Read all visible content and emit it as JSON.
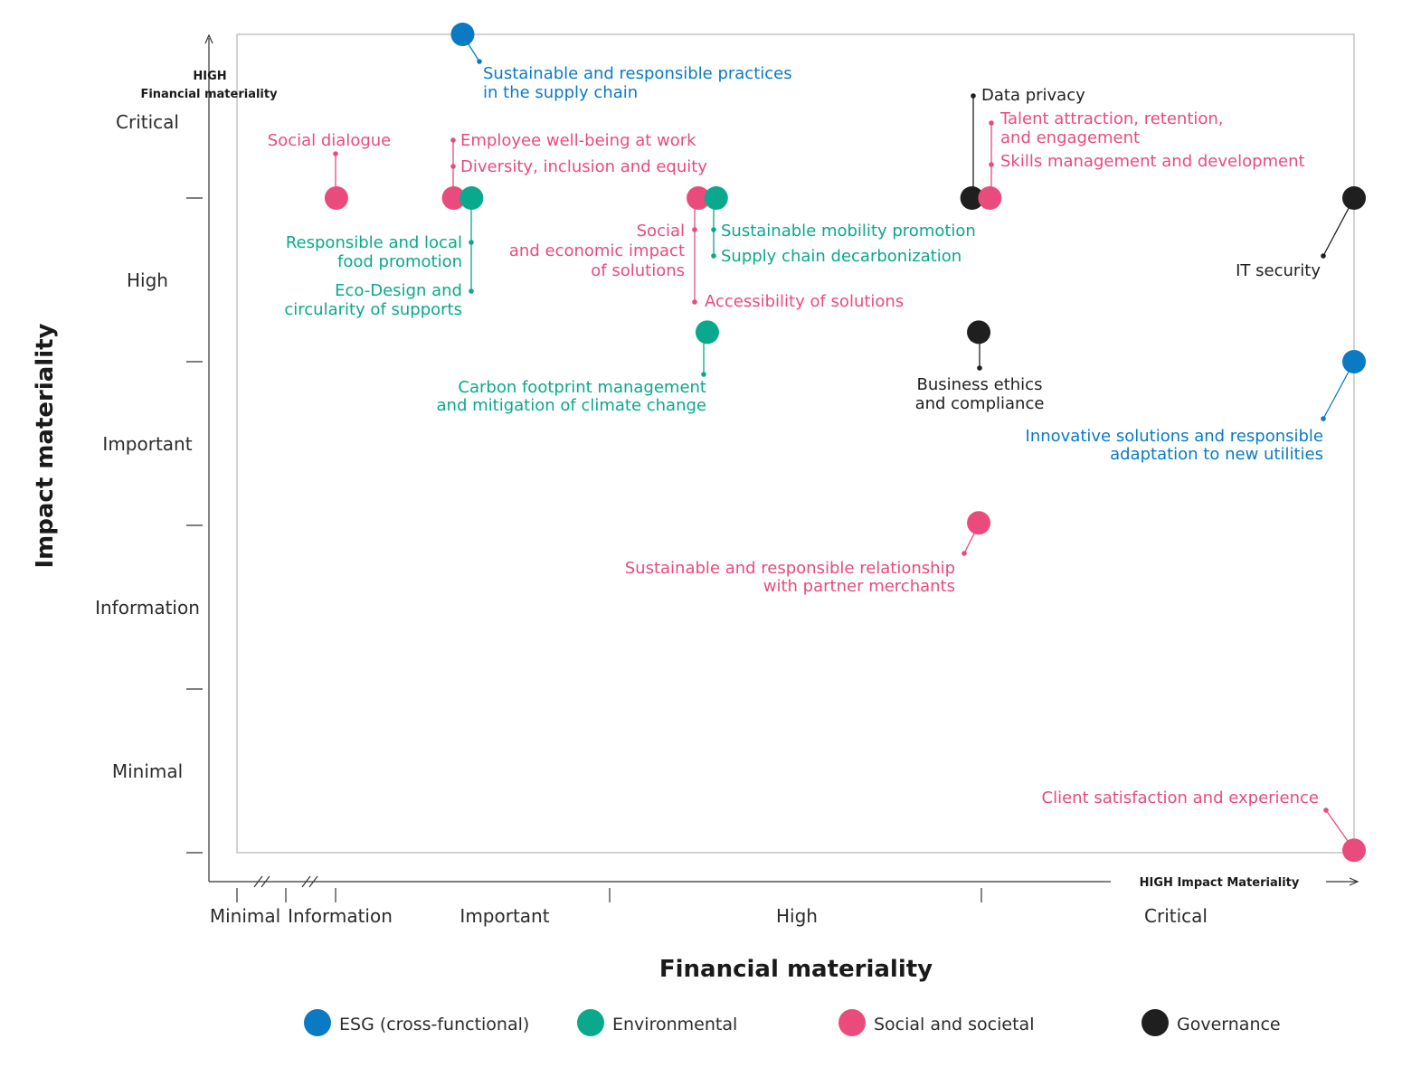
{
  "colors": {
    "esg": "#0a7ac4",
    "environmental": "#0aa88c",
    "social": "#e94b7c",
    "governance": "#1f1f1f"
  },
  "chart_data": {
    "type": "scatter",
    "xlabel": "Financial materiality",
    "ylabel": "Impact materiality",
    "x_corner_label": "HIGH Impact Materiality",
    "y_corner_label": [
      "HIGH",
      "Financial materiality"
    ],
    "x_tick_labels": [
      "Minimal",
      "Information",
      "Important",
      "High",
      "Critical"
    ],
    "y_tick_labels": [
      "Critical",
      "High",
      "Important",
      "Information",
      "Minimal"
    ],
    "x_scale_note": "x in 0-100 within plot frame (Important ~6-30, High ~30-67, Critical ~67-100)",
    "y_scale_note": "y in 0-100 within plot frame (Minimal 0-20, Information 20-40, Important 40-60, High 60-80, Critical 80-100)",
    "xlim": [
      0,
      100
    ],
    "ylim": [
      0,
      100
    ],
    "grid": false,
    "legend_position": "bottom",
    "legend": [
      {
        "key": "esg",
        "label": "ESG (cross-functional)"
      },
      {
        "key": "environmental",
        "label": "Environmental"
      },
      {
        "key": "social",
        "label": "Social and societal"
      },
      {
        "key": "governance",
        "label": "Governance"
      }
    ],
    "points": [
      {
        "cat": "esg",
        "x": 20.2,
        "y": 100,
        "label": [
          "Sustainable and responsible practices",
          "in the supply chain"
        ]
      },
      {
        "cat": "social",
        "x": 8.9,
        "y": 80,
        "label": [
          "Social dialogue"
        ]
      },
      {
        "cat": "social",
        "x": 19.4,
        "y": 80,
        "label": [
          "Employee well-being at work",
          "Diversity, inclusion and equity"
        ]
      },
      {
        "cat": "environmental",
        "x": 21.0,
        "y": 80,
        "label": [
          "Responsible and local",
          "food promotion",
          "Eco-Design and",
          "circularity of supports"
        ]
      },
      {
        "cat": "social",
        "x": 41.3,
        "y": 80,
        "label": [
          "Social",
          "and economic impact",
          "of solutions",
          "Accessibility of solutions"
        ]
      },
      {
        "cat": "environmental",
        "x": 42.9,
        "y": 80,
        "label": [
          "Sustainable mobility promotion",
          "Supply chain decarbonization"
        ]
      },
      {
        "cat": "environmental",
        "x": 42.1,
        "y": 63.6,
        "label": [
          "Carbon footprint management",
          "and mitigation of climate change"
        ]
      },
      {
        "cat": "governance",
        "x": 65.8,
        "y": 80,
        "label": [
          "Data privacy"
        ]
      },
      {
        "cat": "social",
        "x": 67.4,
        "y": 80,
        "label": [
          "Talent attraction, retention,",
          "and engagement",
          "Skills management and development"
        ]
      },
      {
        "cat": "governance",
        "x": 100,
        "y": 80,
        "label": [
          "IT security"
        ]
      },
      {
        "cat": "governance",
        "x": 66.4,
        "y": 63.6,
        "label": [
          "Business ethics",
          "and compliance"
        ]
      },
      {
        "cat": "esg",
        "x": 100,
        "y": 60,
        "label": [
          "Innovative solutions and responsible",
          "adaptation to new utilities"
        ]
      },
      {
        "cat": "social",
        "x": 66.4,
        "y": 40.3,
        "label": [
          "Sustainable and responsible relationship",
          "with partner merchants"
        ]
      },
      {
        "cat": "social",
        "x": 100,
        "y": 0.3,
        "label": [
          "Client satisfaction and experience"
        ]
      }
    ]
  }
}
